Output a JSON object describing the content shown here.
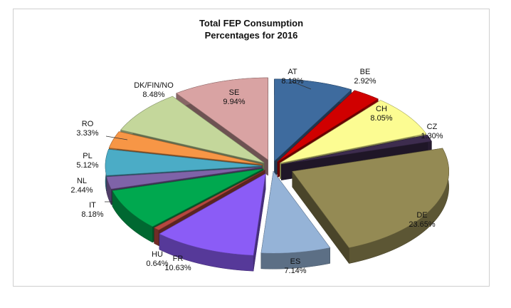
{
  "chart_data": {
    "type": "pie",
    "style": "3d-exploded",
    "title": [
      "Total FEP Consumption",
      "Percentages for 2016"
    ],
    "start_angle_deg": 0,
    "slices": [
      {
        "label": "AT",
        "value": 8.18,
        "pct_text": "8.18%",
        "color": "#3E6B9E"
      },
      {
        "label": "BE",
        "value": 2.92,
        "pct_text": "2.92%",
        "color": "#D00000"
      },
      {
        "label": "CH",
        "value": 8.05,
        "pct_text": "8.05%",
        "color": "#FCFC92"
      },
      {
        "label": "CZ",
        "value": 1.3,
        "pct_text": "1.30%",
        "color": "#3D2C4E"
      },
      {
        "label": "DE",
        "value": 23.65,
        "pct_text": "23.65%",
        "color": "#948A54"
      },
      {
        "label": "ES",
        "value": 7.14,
        "pct_text": "7.14%",
        "color": "#95B3D7"
      },
      {
        "label": "FR",
        "value": 10.63,
        "pct_text": "10.63%",
        "color": "#8B5CF6"
      },
      {
        "label": "HU",
        "value": 0.64,
        "pct_text": "0.64%",
        "color": "#B5473F"
      },
      {
        "label": "IT",
        "value": 8.18,
        "pct_text": "8.18%",
        "color": "#00A84F"
      },
      {
        "label": "NL",
        "value": 2.44,
        "pct_text": "2.44%",
        "color": "#7F63A8"
      },
      {
        "label": "PL",
        "value": 5.12,
        "pct_text": "5.12%",
        "color": "#4BACC6"
      },
      {
        "label": "RO",
        "value": 3.33,
        "pct_text": "3.33%",
        "color": "#F79646"
      },
      {
        "label": "DK/FIN/NO",
        "value": 8.48,
        "pct_text": "8.48%",
        "color": "#C4D79B"
      },
      {
        "label": "SE",
        "value": 9.94,
        "pct_text": "9.94%",
        "color": "#D9A3A3"
      }
    ],
    "legend": "none",
    "data_labels": "category-and-percent"
  }
}
